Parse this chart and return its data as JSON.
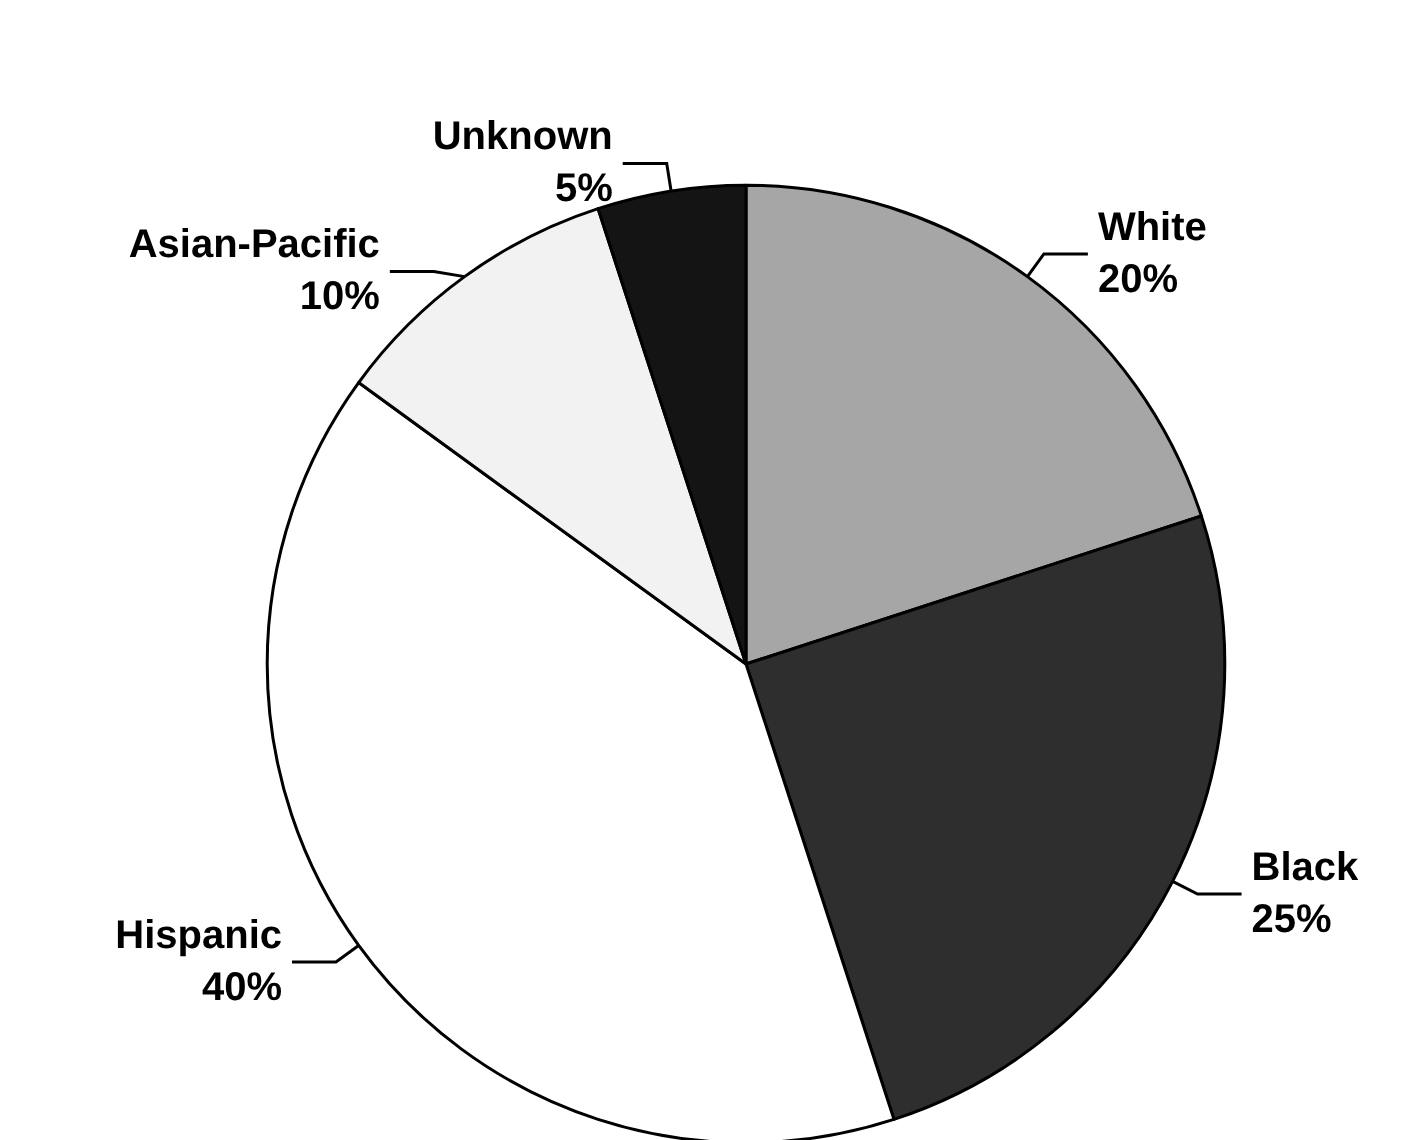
{
  "chart_data": {
    "type": "pie",
    "categories": [
      "White",
      "Black",
      "Hispanic",
      "Asian-Pacific",
      "Unknown"
    ],
    "values": [
      20,
      25,
      40,
      10,
      5
    ],
    "value_labels": [
      "20%",
      "25%",
      "40%",
      "10%",
      "5%"
    ],
    "colors": [
      "#a6a6a6",
      "#2e2e2e",
      "#ffffff",
      "#f2f2f2",
      "#141414"
    ]
  }
}
